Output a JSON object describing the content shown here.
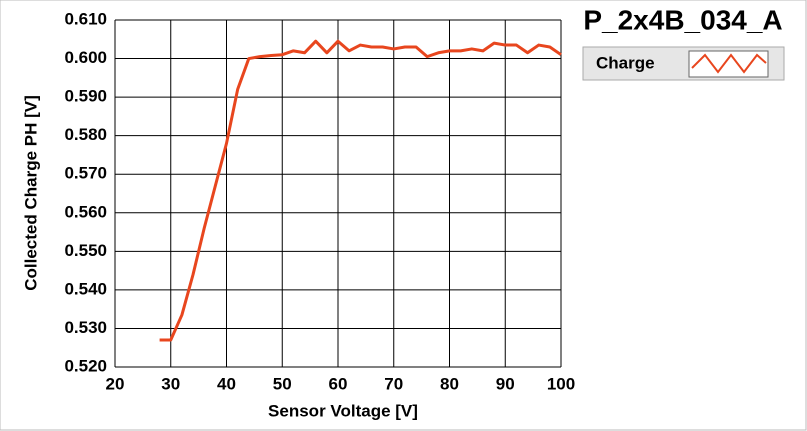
{
  "chart_data": {
    "type": "line",
    "title": "P_2x4B_034_A",
    "x_label": "Sensor Voltage [V]",
    "y_label": "Collected Charge PH [V]",
    "x": [
      28,
      30,
      32,
      34,
      36,
      38,
      40,
      42,
      44,
      46,
      48,
      50,
      52,
      54,
      56,
      58,
      60,
      62,
      64,
      66,
      68,
      70,
      72,
      74,
      76,
      78,
      80,
      82,
      84,
      86,
      88,
      90,
      92,
      94,
      96,
      98,
      100
    ],
    "series": [
      {
        "name": "Charge",
        "color": "#e8461e",
        "values": [
          0.527,
          0.527,
          0.5335,
          0.544,
          0.556,
          0.567,
          0.578,
          0.592,
          0.6,
          0.6005,
          0.6008,
          0.601,
          0.602,
          0.6015,
          0.6045,
          0.6015,
          0.6045,
          0.602,
          0.6035,
          0.603,
          0.603,
          0.6025,
          0.603,
          0.603,
          0.6005,
          0.6015,
          0.602,
          0.602,
          0.6025,
          0.602,
          0.604,
          0.6035,
          0.6035,
          0.6015,
          0.6035,
          0.603,
          0.601
        ]
      }
    ],
    "xlim": [
      20,
      100
    ],
    "xticks": [
      20,
      30,
      40,
      50,
      60,
      70,
      80,
      90,
      100
    ],
    "ylim": [
      0.52,
      0.61
    ],
    "yticks": [
      {
        "value": 0.52,
        "label": "0.520"
      },
      {
        "value": 0.53,
        "label": "0.530"
      },
      {
        "value": 0.54,
        "label": "0.540"
      },
      {
        "value": 0.55,
        "label": "0.550"
      },
      {
        "value": 0.56,
        "label": "0.560"
      },
      {
        "value": 0.57,
        "label": "0.570"
      },
      {
        "value": 0.58,
        "label": "0.580"
      },
      {
        "value": 0.59,
        "label": "0.590"
      },
      {
        "value": 0.6,
        "label": "0.600"
      },
      {
        "value": 0.61,
        "label": "0.610"
      }
    ],
    "grid": true
  }
}
